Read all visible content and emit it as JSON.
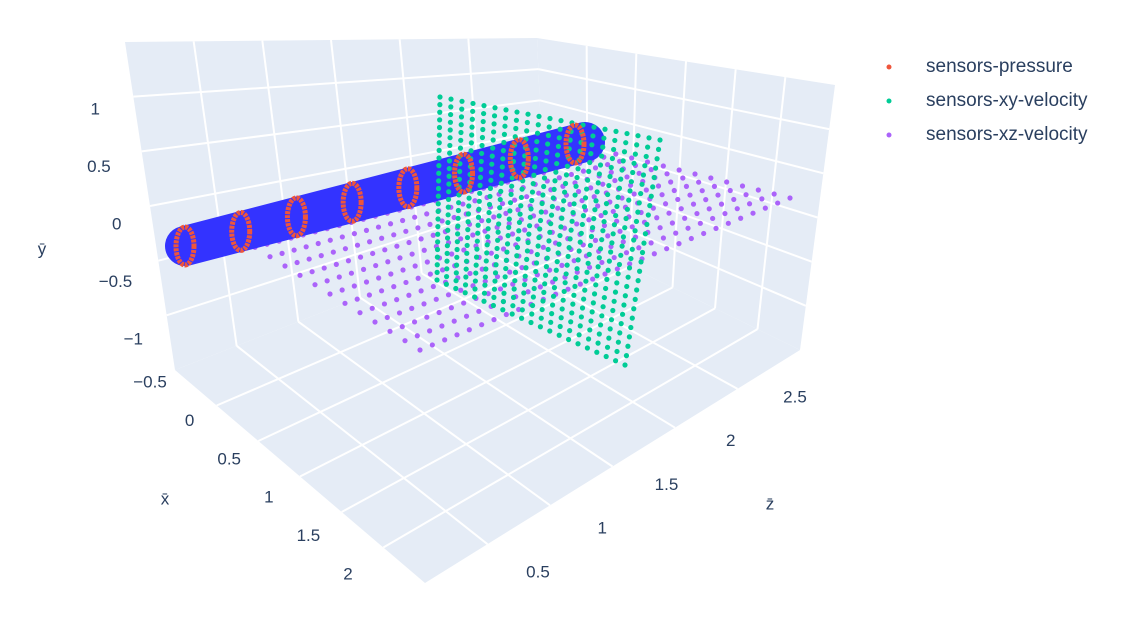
{
  "chart_data": {
    "type": "scatter3d",
    "xlabel": "x̄",
    "ylabel": "ȳ",
    "zlabel": "z̄",
    "xticks": [
      {
        "value": -0.5,
        "label": "−0.5"
      },
      0,
      0.5,
      1,
      1.5,
      2
    ],
    "yticks": [
      {
        "value": -1,
        "label": "−1"
      },
      {
        "value": -0.5,
        "label": "−0.5"
      },
      0,
      0.5,
      1
    ],
    "zticks": [
      0.5,
      1,
      1.5,
      2,
      2.5
    ],
    "series": [
      {
        "name": "sensors-pressure",
        "color": "#EF553B"
      },
      {
        "name": "sensors-xy-velocity",
        "color": "#00CC96"
      },
      {
        "name": "sensors-xz-velocity",
        "color": "#AB63FA"
      }
    ],
    "legend": "top-right"
  }
}
